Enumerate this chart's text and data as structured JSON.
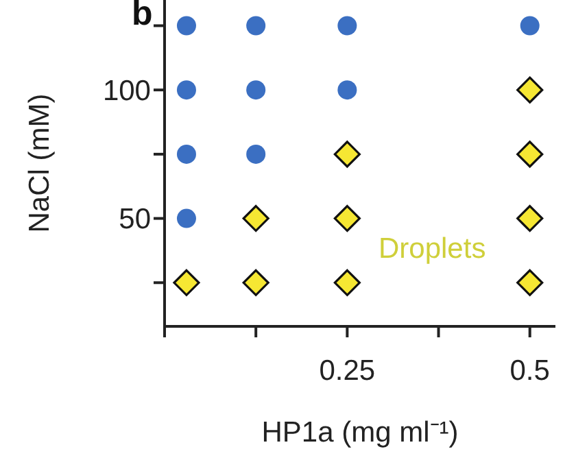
{
  "chart_data": {
    "type": "scatter",
    "title": "b",
    "xlabel": "HP1a (mg ml⁻¹)",
    "ylabel": "NaCl (mM)",
    "series": [
      {
        "color": "#3b6fc2",
        "marker": "circle",
        "x": [
          0.03,
          0.03,
          0.03,
          0.03,
          0.125,
          0.125,
          0.125,
          0.25,
          0.25,
          0.5
        ],
        "values": [
          125,
          100,
          75,
          50,
          125,
          100,
          75,
          125,
          100,
          125
        ]
      },
      {
        "color": "#f6e733",
        "marker": "diamond",
        "x": [
          0.03,
          0.125,
          0.125,
          0.25,
          0.25,
          0.25,
          0.5,
          0.5,
          0.5,
          0.5
        ],
        "values": [
          25,
          50,
          25,
          75,
          50,
          25,
          100,
          75,
          50,
          25
        ]
      }
    ],
    "annotations": [
      "Droplets"
    ],
    "xlim": [
      0,
      0.535
    ],
    "xticks": [
      {
        "value": 0,
        "label": null
      },
      {
        "value": 0.125,
        "label": null
      },
      0.25,
      {
        "value": 0.375,
        "label": null
      },
      0.5
    ],
    "ylim": [
      8,
      135
    ],
    "yticks": [
      {
        "value": 25,
        "label": null
      },
      50,
      {
        "value": 75,
        "label": null
      },
      100,
      {
        "value": 125,
        "label": null
      }
    ],
    "grid": false,
    "legend": false
  }
}
